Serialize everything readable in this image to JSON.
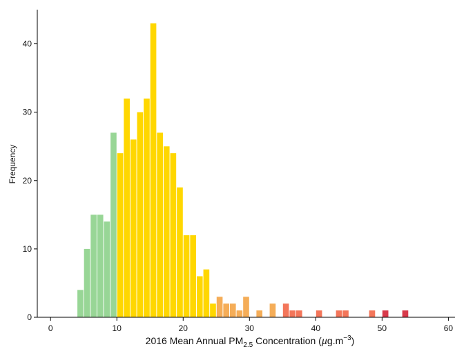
{
  "chart_data": {
    "type": "bar",
    "subtype": "histogram",
    "xlabel": {
      "prefix": "2016 Mean Annual PM",
      "subscript": "2.5",
      "middle": " Concentration (",
      "mu": "µ",
      "unit": "g.m",
      "superscript": "−3",
      "suffix": ")"
    },
    "ylabel": "Frequency",
    "xlim": [
      -2,
      61
    ],
    "ylim": [
      0,
      45
    ],
    "xticks": [
      "0",
      "10",
      "20",
      "30",
      "40",
      "50",
      "60"
    ],
    "yticks": [
      "0",
      "10",
      "20",
      "30",
      "40"
    ],
    "grid": false,
    "colors": {
      "green": "#98d696",
      "yellow": "#ffd700",
      "orange": "#f5ad58",
      "coral": "#f3765a",
      "red": "#d83a4b",
      "axis": "#000000"
    },
    "bars": [
      {
        "x": 4.5,
        "width": 0.9,
        "value": 4,
        "color": "green"
      },
      {
        "x": 5.5,
        "width": 0.9,
        "value": 10,
        "color": "green"
      },
      {
        "x": 6.5,
        "width": 0.9,
        "value": 15,
        "color": "green"
      },
      {
        "x": 7.5,
        "width": 0.9,
        "value": 15,
        "color": "green"
      },
      {
        "x": 8.5,
        "width": 0.9,
        "value": 14,
        "color": "green"
      },
      {
        "x": 9.5,
        "width": 0.9,
        "value": 27,
        "color": "green"
      },
      {
        "x": 10.5,
        "width": 0.9,
        "value": 24,
        "color": "yellow"
      },
      {
        "x": 11.5,
        "width": 0.9,
        "value": 32,
        "color": "yellow"
      },
      {
        "x": 12.5,
        "width": 0.9,
        "value": 26,
        "color": "yellow"
      },
      {
        "x": 13.5,
        "width": 0.9,
        "value": 30,
        "color": "yellow"
      },
      {
        "x": 14.5,
        "width": 0.9,
        "value": 32,
        "color": "yellow"
      },
      {
        "x": 15.5,
        "width": 0.9,
        "value": 43,
        "color": "yellow"
      },
      {
        "x": 16.5,
        "width": 0.9,
        "value": 27,
        "color": "yellow"
      },
      {
        "x": 17.5,
        "width": 0.9,
        "value": 25,
        "color": "yellow"
      },
      {
        "x": 18.5,
        "width": 0.9,
        "value": 24,
        "color": "yellow"
      },
      {
        "x": 19.5,
        "width": 0.9,
        "value": 19,
        "color": "yellow"
      },
      {
        "x": 20.5,
        "width": 0.9,
        "value": 12,
        "color": "yellow"
      },
      {
        "x": 21.5,
        "width": 0.9,
        "value": 12,
        "color": "yellow"
      },
      {
        "x": 22.5,
        "width": 0.9,
        "value": 6,
        "color": "yellow"
      },
      {
        "x": 23.5,
        "width": 0.9,
        "value": 7,
        "color": "yellow"
      },
      {
        "x": 24.5,
        "width": 0.9,
        "value": 2,
        "color": "yellow"
      },
      {
        "x": 25.5,
        "width": 0.9,
        "value": 3,
        "color": "orange"
      },
      {
        "x": 26.5,
        "width": 0.9,
        "value": 2,
        "color": "orange"
      },
      {
        "x": 27.5,
        "width": 0.9,
        "value": 2,
        "color": "orange"
      },
      {
        "x": 28.5,
        "width": 0.9,
        "value": 1,
        "color": "orange"
      },
      {
        "x": 29.5,
        "width": 0.9,
        "value": 3,
        "color": "orange"
      },
      {
        "x": 31.5,
        "width": 0.9,
        "value": 1,
        "color": "orange"
      },
      {
        "x": 33.5,
        "width": 0.9,
        "value": 2,
        "color": "orange"
      },
      {
        "x": 35.5,
        "width": 0.9,
        "value": 2,
        "color": "coral"
      },
      {
        "x": 36.5,
        "width": 0.9,
        "value": 1,
        "color": "coral"
      },
      {
        "x": 37.5,
        "width": 0.9,
        "value": 1,
        "color": "coral"
      },
      {
        "x": 40.5,
        "width": 0.9,
        "value": 1,
        "color": "coral"
      },
      {
        "x": 43.5,
        "width": 0.9,
        "value": 1,
        "color": "coral"
      },
      {
        "x": 44.5,
        "width": 0.9,
        "value": 1,
        "color": "coral"
      },
      {
        "x": 48.5,
        "width": 0.9,
        "value": 1,
        "color": "coral"
      },
      {
        "x": 50.5,
        "width": 0.9,
        "value": 1,
        "color": "red"
      },
      {
        "x": 53.5,
        "width": 0.9,
        "value": 1,
        "color": "red"
      }
    ]
  }
}
